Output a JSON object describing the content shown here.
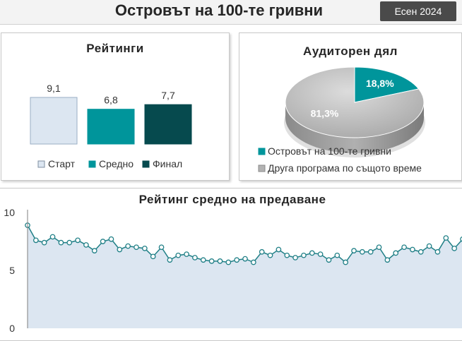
{
  "header": {
    "title": "Островът на 100-те гривни",
    "season": "Есен 2024"
  },
  "chart_data": [
    {
      "type": "bar",
      "title": "Рейтинги",
      "categories": [
        "Старт",
        "Средно",
        "Финал"
      ],
      "values": [
        9.1,
        6.8,
        7.7
      ],
      "value_labels": [
        "9,1",
        "6,8",
        "7,7"
      ],
      "colors": [
        "#dce6f1",
        "#00959b",
        "#064a4e"
      ],
      "ylim": [
        0,
        10
      ],
      "legend_position": "bottom"
    },
    {
      "type": "pie",
      "title": "Аудиторен дял",
      "labels": [
        "Островът на 100-те гривни",
        "Друга програма по същото време"
      ],
      "values": [
        18.8,
        81.3
      ],
      "value_labels": [
        "18,8%",
        "81,3%"
      ],
      "colors": [
        "#00959b",
        "#b3b3b3"
      ],
      "legend_position": "bottom"
    },
    {
      "type": "area",
      "title": "Рейтинг средно на предаване",
      "yticks": [
        "10",
        "5",
        "0"
      ],
      "ylim": [
        0,
        10
      ],
      "grid": false,
      "values": [
        8.9,
        7.6,
        7.4,
        7.9,
        7.4,
        7.4,
        7.6,
        7.2,
        6.7,
        7.5,
        7.7,
        6.8,
        7.1,
        7.0,
        6.9,
        6.2,
        7.0,
        5.9,
        6.3,
        6.4,
        6.1,
        5.9,
        5.8,
        5.8,
        5.7,
        5.9,
        6.0,
        5.7,
        6.6,
        6.3,
        6.8,
        6.3,
        6.1,
        6.3,
        6.5,
        6.4,
        5.9,
        6.3,
        5.7,
        6.7,
        6.6,
        6.6,
        7.0,
        5.9,
        6.5,
        7.0,
        6.8,
        6.6,
        7.1,
        6.6,
        7.8,
        6.9,
        7.7
      ]
    }
  ]
}
